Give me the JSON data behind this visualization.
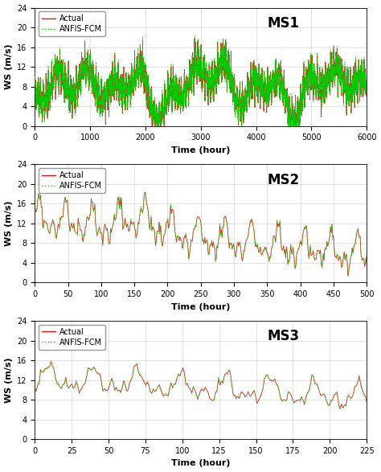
{
  "panels": [
    {
      "title": "MS1",
      "xlabel": "Time (hour)",
      "ylabel": "WS (m/s)",
      "xlim": [
        0,
        6000
      ],
      "ylim": [
        0,
        24
      ],
      "yticks": [
        0,
        4,
        8,
        12,
        16,
        20,
        24
      ],
      "xticks": [
        0,
        1000,
        2000,
        3000,
        4000,
        5000,
        6000
      ],
      "n_points": 6000,
      "base_mean": 8.0,
      "spike_prob": 0.05,
      "seed": 42
    },
    {
      "title": "MS2",
      "xlabel": "Time (hour)",
      "ylabel": "WS (m/s)",
      "xlim": [
        0,
        500
      ],
      "ylim": [
        0,
        24
      ],
      "yticks": [
        0,
        4,
        8,
        12,
        16,
        20,
        24
      ],
      "xticks": [
        0,
        50,
        100,
        150,
        200,
        250,
        300,
        350,
        400,
        450,
        500
      ],
      "n_points": 460,
      "base_mean": 7.0,
      "seed": 55
    },
    {
      "title": "MS3",
      "xlabel": "Time (hour)",
      "ylabel": "WS (m/s)",
      "xlim": [
        0,
        225
      ],
      "ylim": [
        0,
        24
      ],
      "yticks": [
        0,
        4,
        8,
        12,
        16,
        20,
        24
      ],
      "xticks": [
        0,
        25,
        50,
        75,
        100,
        125,
        150,
        175,
        200,
        225
      ],
      "n_points": 225,
      "base_mean": 9.5,
      "seed": 77
    }
  ],
  "actual_color": "#EE1111",
  "anfis_color": "#00CC00",
  "actual_label": "Actual",
  "anfis_label": "ANFIS-FCM",
  "actual_lw": 0.55,
  "anfis_lw": 0.7,
  "grid_color": "#AAAAAA",
  "grid_alpha": 0.6,
  "background_color": "#FFFFFF",
  "legend_fontsize": 7,
  "axis_label_fontsize": 8,
  "tick_fontsize": 7,
  "title_fontsize": 12
}
